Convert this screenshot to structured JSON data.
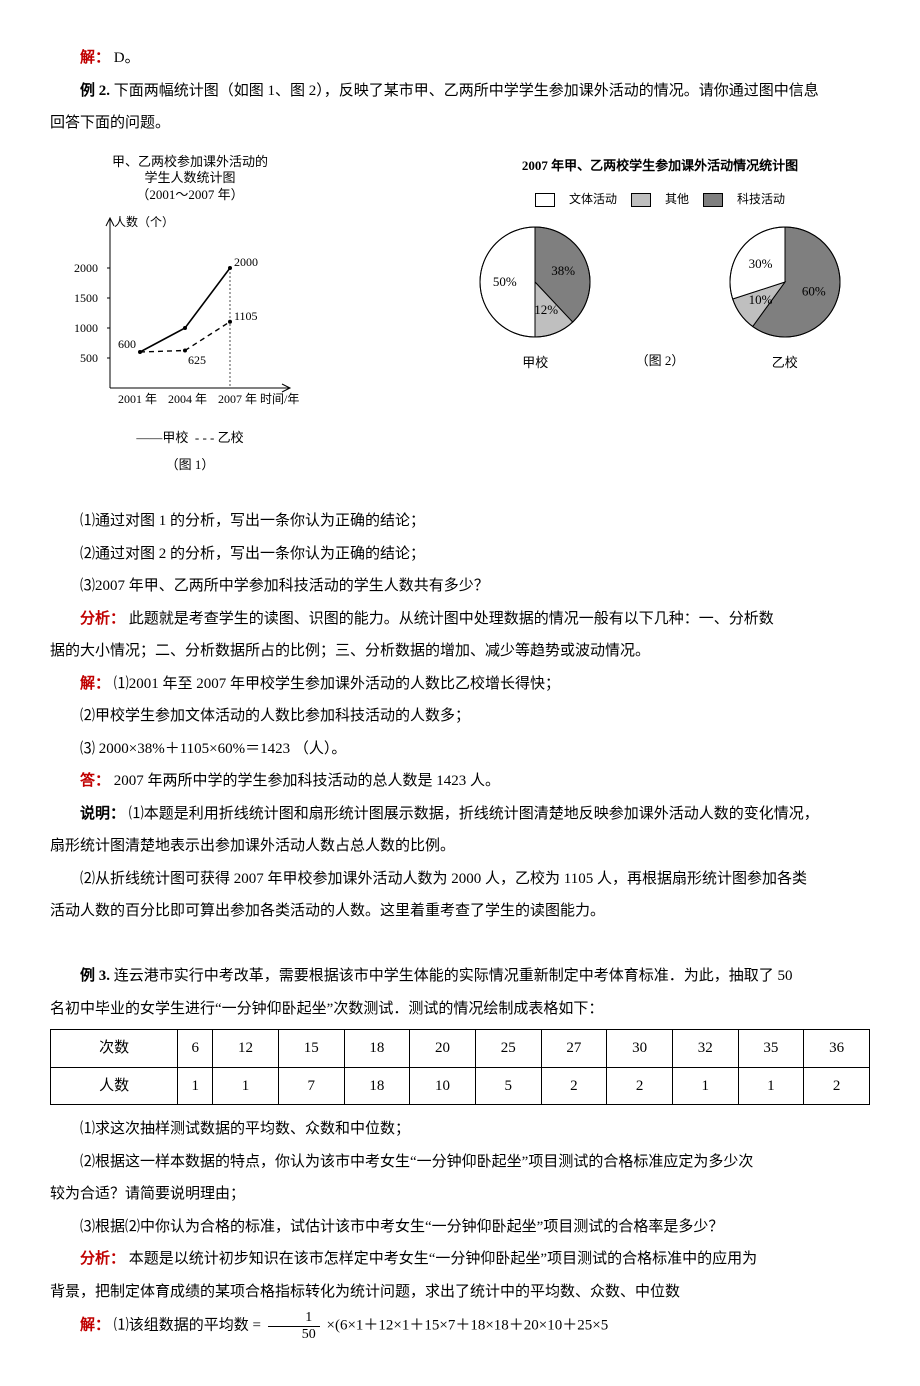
{
  "answer_line": {
    "label": "解：",
    "value": "D。"
  },
  "ex2": {
    "label": "例 2.",
    "stem_a": " 下面两幅统计图（如图 1、图 2），反映了某市甲、乙两所中学学生参加课外活动的情况。请你通过图中信息",
    "stem_b": "回答下面的问题。"
  },
  "line_chart": {
    "title_l1": "甲、乙两校参加课外活动的",
    "title_l2": "学生人数统计图",
    "title_l3": "（2001～2007 年）",
    "y_label": "人数（个）",
    "x_label": "时间/年",
    "x_ticks": [
      "2001 年",
      "2004 年",
      "2007 年"
    ],
    "y_ticks": [
      500,
      1000,
      1500,
      2000
    ],
    "series_jia": {
      "name": "甲校",
      "points": [
        600,
        1000,
        2000
      ],
      "style": "solid"
    },
    "series_yi": {
      "name": "乙校",
      "points": [
        600,
        625,
        1105
      ],
      "style": "dashed"
    },
    "annot": {
      "jia_end": "2000",
      "yi_end": "1105",
      "start": "600",
      "yi_mid": "625"
    },
    "legend_jia": "甲校",
    "legend_yi": "乙校",
    "fig_label": "（图 1）",
    "colors": {
      "axis": "#000000",
      "line": "#000000"
    }
  },
  "pie_block": {
    "title": "2007 年甲、乙两校学生参加课外活动情况统计图",
    "legend": [
      {
        "name": "文体活动",
        "fill": "#ffffff"
      },
      {
        "name": "其他",
        "fill": "#bfbfbf"
      },
      {
        "name": "科技活动",
        "fill": "#7f7f7f"
      }
    ],
    "jia": {
      "label": "甲校",
      "slices": [
        {
          "name": "文体活动",
          "pct": 50,
          "fill": "#ffffff",
          "text": "50%"
        },
        {
          "name": "科技活动",
          "pct": 38,
          "fill": "#7f7f7f",
          "text": "38%"
        },
        {
          "name": "其他",
          "pct": 12,
          "fill": "#bfbfbf",
          "text": "12%"
        }
      ]
    },
    "yi": {
      "label": "乙校",
      "slices": [
        {
          "name": "文体活动",
          "pct": 30,
          "fill": "#ffffff",
          "text": "30%"
        },
        {
          "name": "科技活动",
          "pct": 60,
          "fill": "#7f7f7f",
          "text": "60%"
        },
        {
          "name": "其他",
          "pct": 10,
          "fill": "#bfbfbf",
          "text": "10%"
        }
      ]
    },
    "fig_label": "（图 2）"
  },
  "q": {
    "q1": "⑴通过对图 1 的分析，写出一条你认为正确的结论；",
    "q2": "⑵通过对图 2 的分析，写出一条你认为正确的结论；",
    "q3": "⑶2007 年甲、乙两所中学参加科技活动的学生人数共有多少？"
  },
  "analysis": {
    "label": "分析：",
    "text_a": "此题就是考查学生的读图、识图的能力。从统计图中处理数据的情况一般有以下几种：一、分析数",
    "text_b": "据的大小情况；二、分析数据所占的比例；三、分析数据的增加、减少等趋势或波动情况。"
  },
  "sol": {
    "label": "解：",
    "s1": "⑴2001 年至 2007 年甲校学生参加课外活动的人数比乙校增长得快；",
    "s2": "⑵甲校学生参加文体活动的人数比参加科技活动的人数多；",
    "s3": "⑶ 2000×38%＋1105×60%＝1423 （人）。"
  },
  "ans": {
    "label": "答：",
    "text": "2007 年两所中学的学生参加科技活动的总人数是 1423 人。"
  },
  "explain": {
    "label": "说明：",
    "p1a": "⑴本题是利用折线统计图和扇形统计图展示数据，折线统计图清楚地反映参加课外活动人数的变化情况，",
    "p1b": "扇形统计图清楚地表示出参加课外活动人数占总人数的比例。",
    "p2a": "⑵从折线统计图可获得 2007 年甲校参加课外活动人数为 2000 人，乙校为 1105 人，再根据扇形统计图参加各类",
    "p2b": "活动人数的百分比即可算出参加各类活动的人数。这里着重考查了学生的读图能力。"
  },
  "ex3": {
    "label": "例 3.",
    "stem_a": " 连云港市实行中考改革，需要根据该市中学生体能的实际情况重新制定中考体育标准．为此，抽取了 50",
    "stem_b": "名初中毕业的女学生进行“一分钟仰卧起坐”次数测试．测试的情况绘制成表格如下："
  },
  "table": {
    "row_head": [
      "次数",
      "人数"
    ],
    "cols": [
      "6",
      "12",
      "15",
      "18",
      "20",
      "25",
      "27",
      "30",
      "32",
      "35",
      "36"
    ],
    "counts": [
      "1",
      "1",
      "7",
      "18",
      "10",
      "5",
      "2",
      "2",
      "1",
      "1",
      "2"
    ]
  },
  "q3s": {
    "q1": "⑴求这次抽样测试数据的平均数、众数和中位数；",
    "q2a": "⑵根据这一样本数据的特点，你认为该市中考女生“一分钟仰卧起坐”项目测试的合格标准应定为多少次",
    "q2b": "较为合适？请简要说明理由；",
    "q3": "⑶根据⑵中你认为合格的标准，试估计该市中考女生“一分钟仰卧起坐”项目测试的合格率是多少？"
  },
  "analysis3": {
    "label": "分析：",
    "text_a": "本题是以统计初步知识在该市怎样定中考女生“一分钟仰卧起坐”项目测试的合格标准中的应用为",
    "text_b": "背景，把制定体育成绩的某项合格指标转化为统计问题，求出了统计中的平均数、众数、中位数"
  },
  "sol3": {
    "label": "解：",
    "lead": "⑴该组数据的平均数 =",
    "frac_num": "1",
    "frac_den": "50",
    "tail": "×(6×1＋12×1＋15×7＋18×18＋20×10＋25×5"
  }
}
